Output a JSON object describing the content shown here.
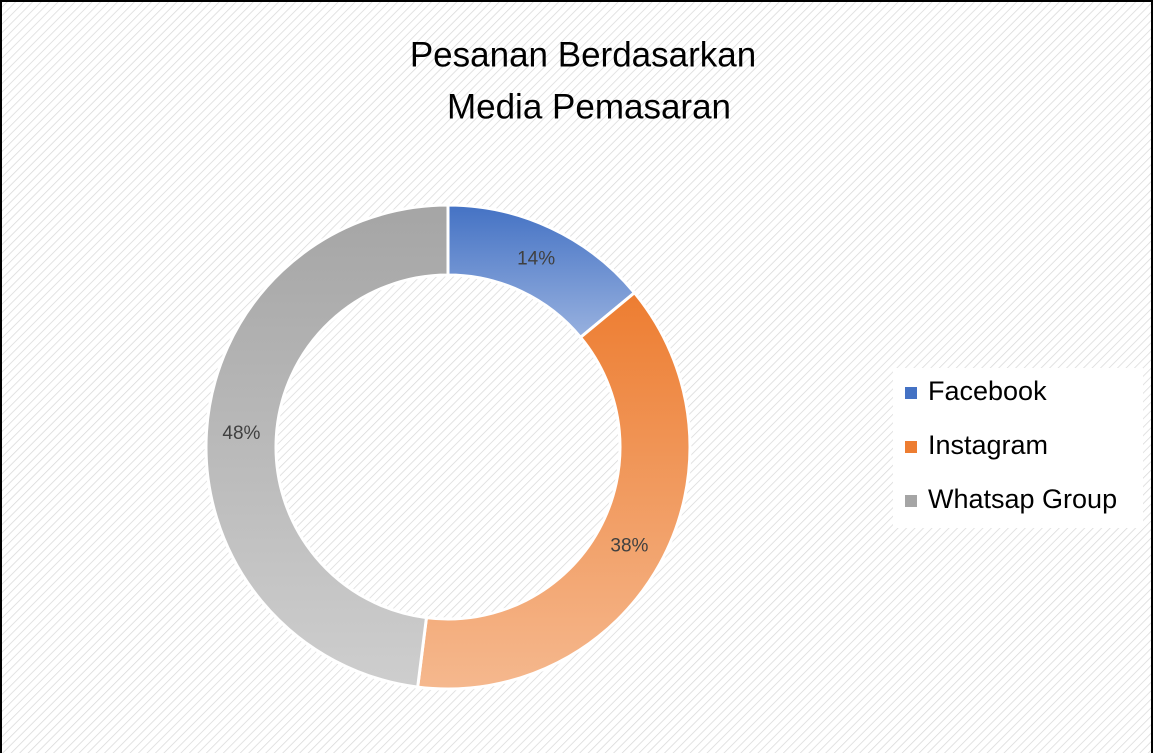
{
  "chart_data": {
    "type": "donut",
    "title": [
      "Pesanan Berdasarkan",
      "Media Pemasaran"
    ],
    "categories": [
      "Facebook",
      "Instagram",
      "Whatsap Group"
    ],
    "values": [
      14,
      38,
      48
    ],
    "value_labels": [
      "14%",
      "38%",
      "48%"
    ],
    "colors": [
      "#4472c4",
      "#ed7d31",
      "#a5a5a5"
    ],
    "legend": "right"
  }
}
